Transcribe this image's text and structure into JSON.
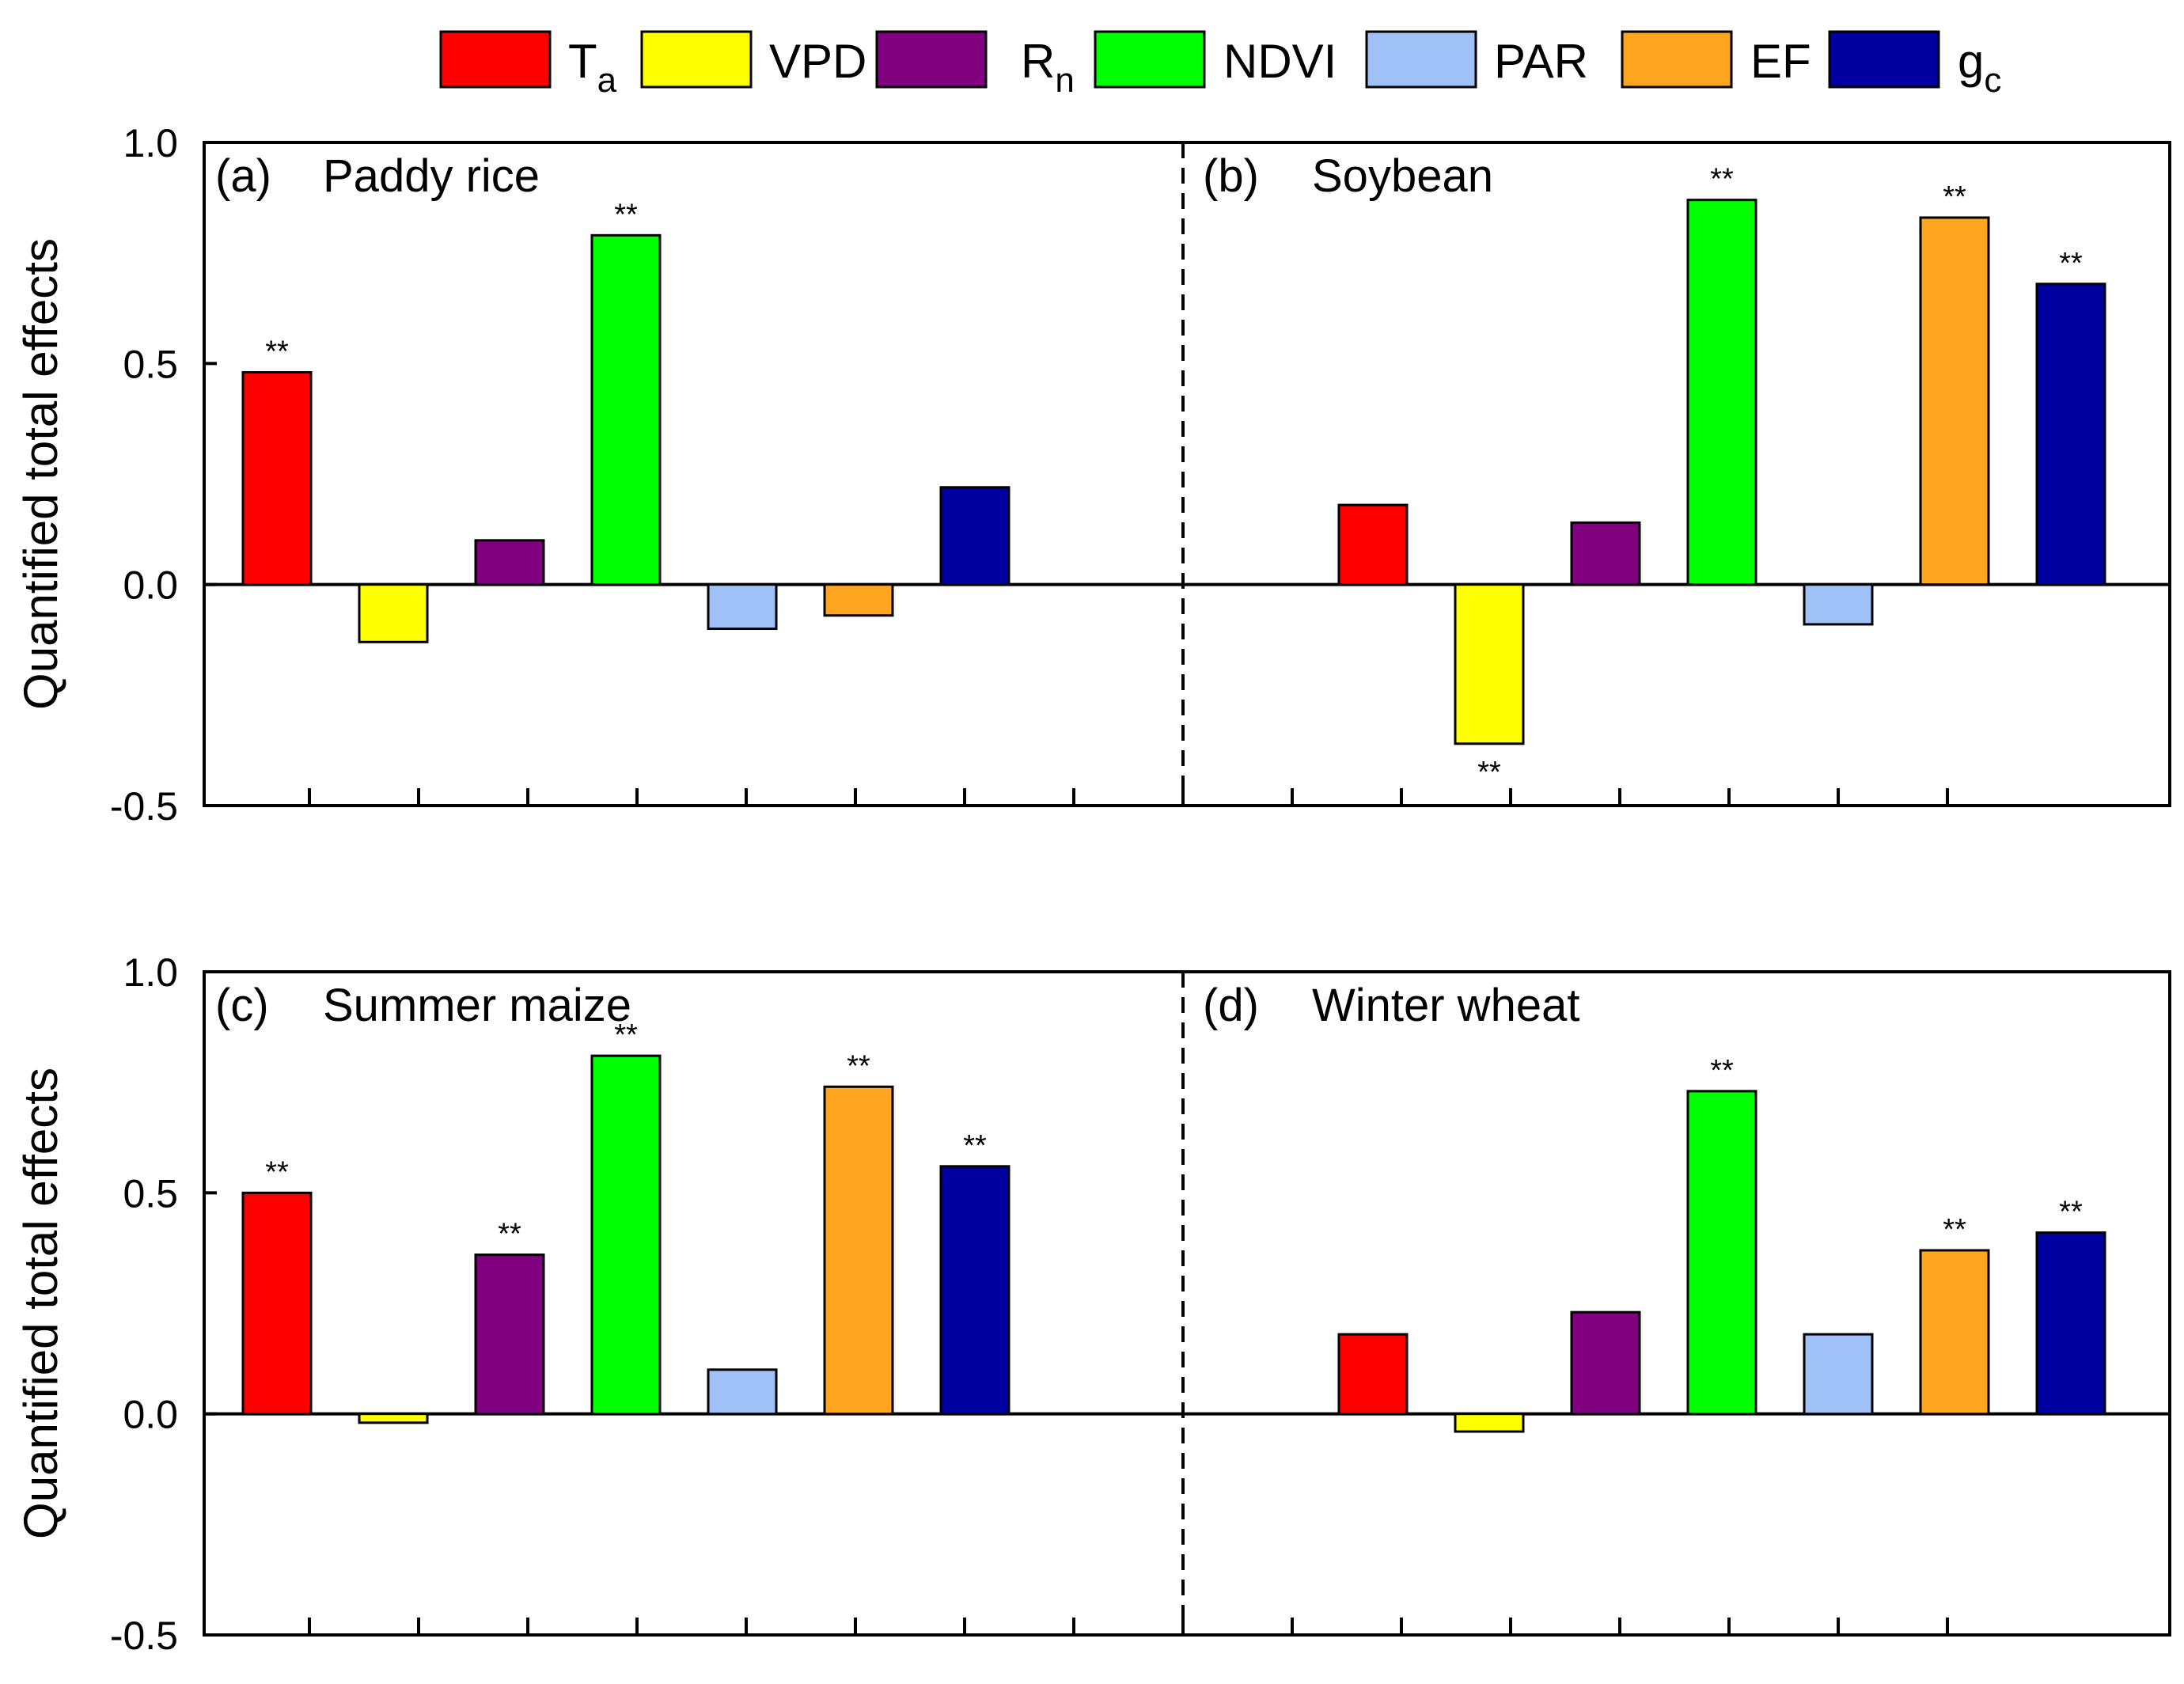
{
  "colors": {
    "Ta": "#ff0000",
    "VPD": "#ffff00",
    "Rn": "#800080",
    "NDVI": "#00ff00",
    "PAR": "#a0c0f8",
    "EF": "#ffa520",
    "gc": "#0000a0"
  },
  "legend": [
    {
      "key": "Ta",
      "main": "T",
      "sub": "a"
    },
    {
      "key": "VPD",
      "main": "VPD",
      "sub": ""
    },
    {
      "key": "Rn",
      "main": "R",
      "sub": "n"
    },
    {
      "key": "NDVI",
      "main": "NDVI",
      "sub": ""
    },
    {
      "key": "PAR",
      "main": "PAR",
      "sub": ""
    },
    {
      "key": "EF",
      "main": "EF",
      "sub": ""
    },
    {
      "key": "gc",
      "main": "g",
      "sub": "c"
    }
  ],
  "chart_data": [
    {
      "type": "bar",
      "ylabel": "Quantified total effects",
      "ylim": [
        -0.5,
        1.0
      ],
      "yticks": [
        "-0.5",
        "0.0",
        "0.5",
        "1.0"
      ],
      "grid": false,
      "panels": [
        {
          "id": "a",
          "label": "(a)",
          "title": "Paddy rice",
          "categories": [
            "Ta",
            "VPD",
            "Rn",
            "NDVI",
            "PAR",
            "EF",
            "gc"
          ],
          "values": [
            0.48,
            -0.13,
            0.1,
            0.79,
            -0.1,
            -0.07,
            0.22
          ],
          "significance": [
            "**",
            "",
            "",
            "**",
            "",
            "",
            ""
          ]
        },
        {
          "id": "b",
          "label": "(b)",
          "title": "Soybean",
          "categories": [
            "Ta",
            "VPD",
            "Rn",
            "NDVI",
            "PAR",
            "EF",
            "gc"
          ],
          "values": [
            0.18,
            -0.36,
            0.14,
            0.87,
            -0.09,
            0.83,
            0.68
          ],
          "significance": [
            "",
            "**",
            "",
            "**",
            "",
            "**",
            "**"
          ]
        }
      ]
    },
    {
      "type": "bar",
      "ylabel": "Quantified total effects",
      "ylim": [
        -0.5,
        1.0
      ],
      "yticks": [
        "-0.5",
        "0.0",
        "0.5",
        "1.0"
      ],
      "grid": false,
      "panels": [
        {
          "id": "c",
          "label": "(c)",
          "title": "Summer maize",
          "categories": [
            "Ta",
            "VPD",
            "Rn",
            "NDVI",
            "PAR",
            "EF",
            "gc"
          ],
          "values": [
            0.5,
            -0.02,
            0.36,
            0.81,
            0.1,
            0.74,
            0.56
          ],
          "significance": [
            "**",
            "",
            "**",
            "**",
            "",
            "**",
            "**"
          ]
        },
        {
          "id": "d",
          "label": "(d)",
          "title": "Winter wheat",
          "categories": [
            "Ta",
            "VPD",
            "Rn",
            "NDVI",
            "PAR",
            "EF",
            "gc"
          ],
          "values": [
            0.18,
            -0.04,
            0.23,
            0.73,
            0.18,
            0.37,
            0.41
          ],
          "significance": [
            "",
            "",
            "",
            "**",
            "",
            "**",
            "**"
          ]
        }
      ]
    }
  ]
}
